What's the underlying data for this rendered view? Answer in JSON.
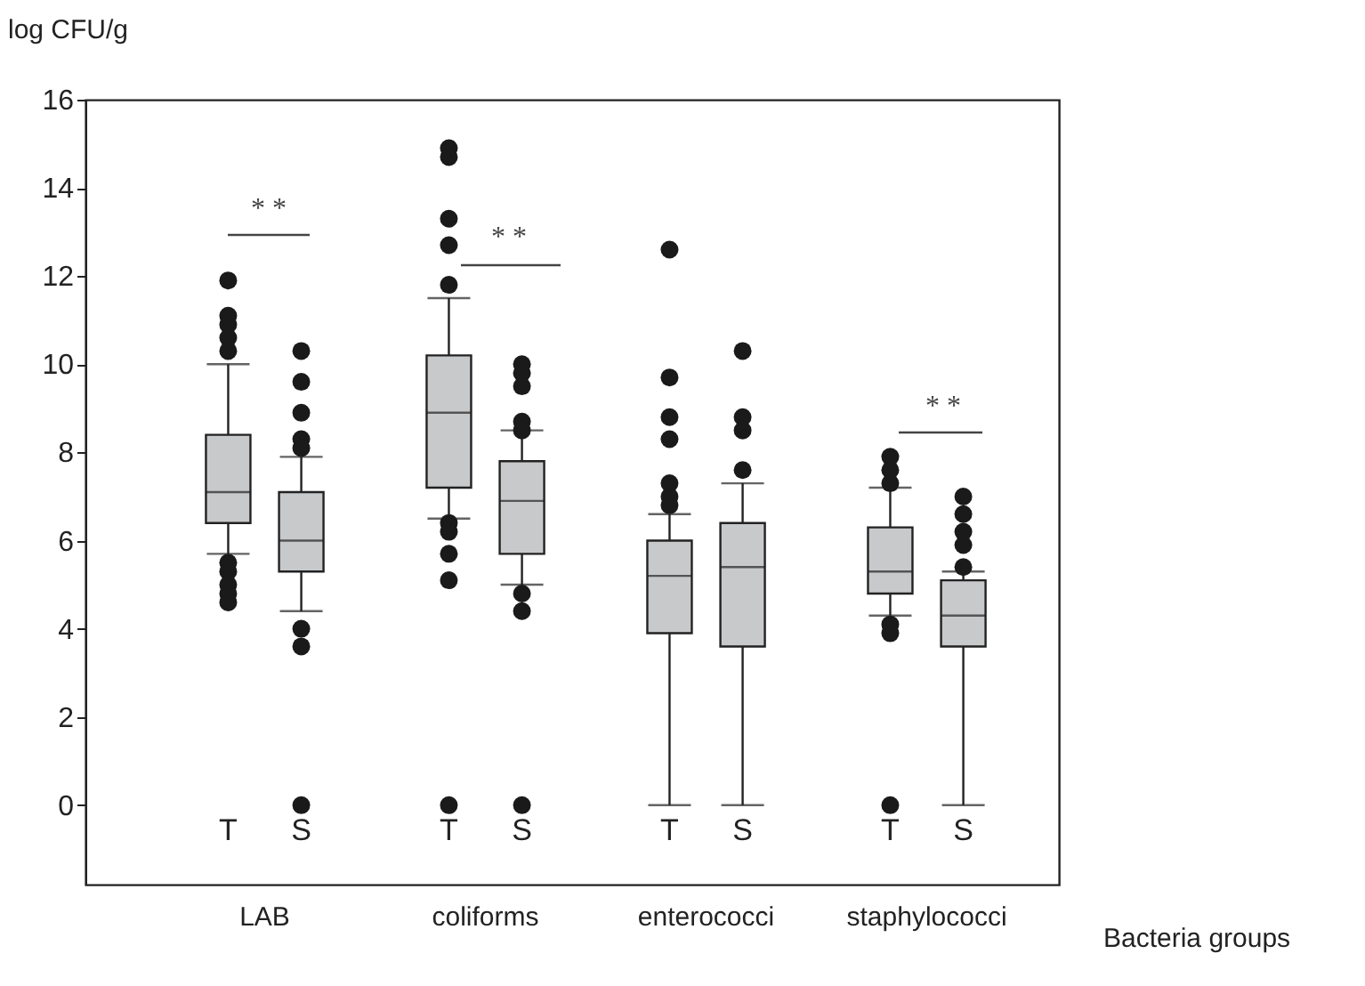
{
  "chart_data": {
    "type": "box",
    "xlabel": "Bacteria groups",
    "ylabel": "log CFU/g",
    "grid": false,
    "categories": [
      "T",
      "S",
      "T",
      "S",
      "T",
      "S",
      "T",
      "S"
    ],
    "ylim": [
      -1.8,
      16
    ],
    "yticks": [
      0,
      2,
      4,
      6,
      8,
      10,
      12,
      14,
      16
    ],
    "color": "#c8c9cb",
    "boxes": [
      {
        "low": 5.7,
        "q1": 6.4,
        "median": 7.1,
        "q3": 8.4,
        "high": 10.0,
        "outliers": [
          11.9,
          11.1,
          10.9,
          10.6,
          10.3,
          5.5,
          5.3,
          5.0,
          4.8,
          4.6
        ]
      },
      {
        "low": 4.4,
        "q1": 5.3,
        "median": 6.0,
        "q3": 7.1,
        "high": 7.9,
        "outliers": [
          10.3,
          9.6,
          8.9,
          8.3,
          8.1,
          4.0,
          3.6,
          0
        ]
      },
      {
        "low": 6.5,
        "q1": 7.2,
        "median": 8.9,
        "q3": 10.2,
        "high": 11.5,
        "outliers": [
          14.9,
          14.7,
          13.3,
          12.7,
          11.8,
          6.4,
          6.2,
          5.7,
          5.1,
          0
        ]
      },
      {
        "low": 5.0,
        "q1": 5.7,
        "median": 6.9,
        "q3": 7.8,
        "high": 8.5,
        "outliers": [
          10.0,
          9.8,
          9.5,
          8.7,
          8.5,
          4.8,
          4.4,
          0
        ]
      },
      {
        "low": 0,
        "q1": 3.9,
        "median": 5.2,
        "q3": 6.0,
        "high": 6.6,
        "outliers": [
          12.6,
          9.7,
          8.8,
          8.3,
          7.3,
          7.0,
          6.8
        ]
      },
      {
        "low": 0,
        "q1": 3.6,
        "median": 5.4,
        "q3": 6.4,
        "high": 7.3,
        "outliers": [
          10.3,
          8.8,
          8.5,
          7.6
        ]
      },
      {
        "low": 4.3,
        "q1": 4.8,
        "median": 5.3,
        "q3": 6.3,
        "high": 7.2,
        "outliers": [
          7.9,
          7.6,
          7.3,
          4.1,
          3.9,
          0
        ]
      },
      {
        "low": 0,
        "q1": 3.6,
        "median": 4.3,
        "q3": 5.1,
        "high": 5.3,
        "outliers": [
          7.0,
          6.6,
          6.2,
          5.9,
          5.4
        ]
      }
    ],
    "annotations": [
      "LAB",
      "coliforms",
      "enterococci",
      "staphylococci",
      "* *",
      "* *",
      "* *"
    ]
  }
}
